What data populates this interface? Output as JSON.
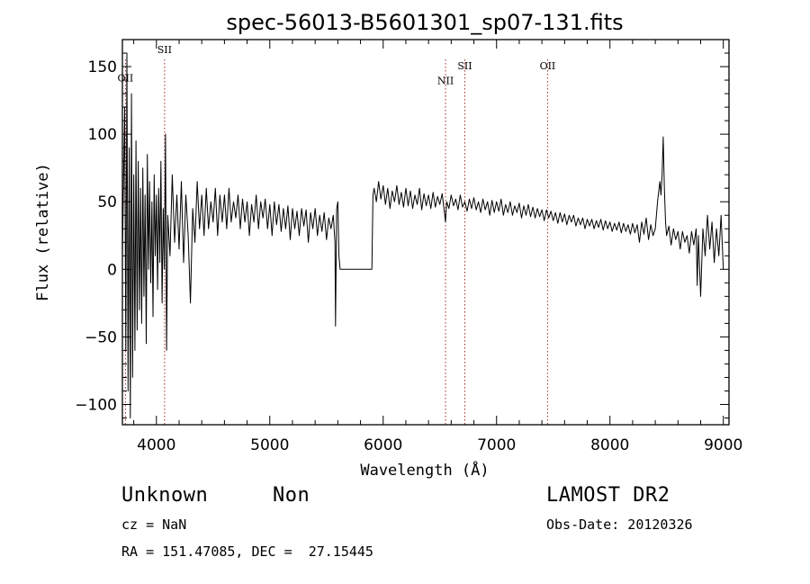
{
  "chart_data": {
    "type": "line",
    "title": "spec-56013-B5601301_sp07-131.fits",
    "xlabel": "Wavelength (Å)",
    "ylabel": "Flux (relative)",
    "xlim": [
      3700,
      9050
    ],
    "ylim": [
      -115,
      170
    ],
    "xticks": [
      4000,
      5000,
      6000,
      7000,
      8000,
      9000
    ],
    "yticks": [
      -100,
      -50,
      0,
      50,
      100,
      150
    ],
    "ytick_labels": [
      "−100",
      "−50",
      "0",
      "50",
      "100",
      "150"
    ],
    "grid": false,
    "lines": [
      {
        "label": "OII",
        "wavelength": 3727,
        "label_y": 139
      },
      {
        "label": "SII",
        "wavelength": 4072,
        "label_y": 160
      },
      {
        "label": "NII",
        "wavelength": 6550,
        "label_y": 137
      },
      {
        "label": "SII",
        "wavelength": 6720,
        "label_y": 148
      },
      {
        "label": "OII",
        "wavelength": 7450,
        "label_y": 148
      }
    ],
    "series": [
      {
        "points": [
          [
            3700,
            10
          ],
          [
            3720,
            120
          ],
          [
            3730,
            -60
          ],
          [
            3740,
            160
          ],
          [
            3750,
            -90
          ],
          [
            3760,
            90
          ],
          [
            3770,
            -110
          ],
          [
            3780,
            130
          ],
          [
            3790,
            -80
          ],
          [
            3800,
            70
          ],
          [
            3810,
            -60
          ],
          [
            3820,
            95
          ],
          [
            3830,
            -45
          ],
          [
            3840,
            80
          ],
          [
            3850,
            -30
          ],
          [
            3860,
            60
          ],
          [
            3870,
            -40
          ],
          [
            3880,
            75
          ],
          [
            3890,
            -20
          ],
          [
            3900,
            55
          ],
          [
            3910,
            -55
          ],
          [
            3920,
            85
          ],
          [
            3930,
            0
          ],
          [
            3940,
            65
          ],
          [
            3950,
            -10
          ],
          [
            3960,
            50
          ],
          [
            3970,
            -35
          ],
          [
            3980,
            70
          ],
          [
            3990,
            10
          ],
          [
            4000,
            55
          ],
          [
            4010,
            -15
          ],
          [
            4020,
            60
          ],
          [
            4030,
            5
          ],
          [
            4040,
            80
          ],
          [
            4050,
            -25
          ],
          [
            4060,
            45
          ],
          [
            4070,
            0
          ],
          [
            4080,
            100
          ],
          [
            4090,
            -60
          ],
          [
            4100,
            40
          ],
          [
            4120,
            10
          ],
          [
            4140,
            70
          ],
          [
            4160,
            20
          ],
          [
            4180,
            55
          ],
          [
            4200,
            15
          ],
          [
            4220,
            65
          ],
          [
            4240,
            5
          ],
          [
            4260,
            55
          ],
          [
            4280,
            25
          ],
          [
            4300,
            -25
          ],
          [
            4320,
            45
          ],
          [
            4340,
            20
          ],
          [
            4360,
            65
          ],
          [
            4380,
            30
          ],
          [
            4400,
            55
          ],
          [
            4420,
            25
          ],
          [
            4440,
            60
          ],
          [
            4460,
            30
          ],
          [
            4480,
            50
          ],
          [
            4500,
            35
          ],
          [
            4520,
            60
          ],
          [
            4540,
            25
          ],
          [
            4560,
            55
          ],
          [
            4580,
            35
          ],
          [
            4600,
            55
          ],
          [
            4620,
            30
          ],
          [
            4640,
            60
          ],
          [
            4660,
            35
          ],
          [
            4680,
            50
          ],
          [
            4700,
            38
          ],
          [
            4720,
            55
          ],
          [
            4740,
            30
          ],
          [
            4760,
            52
          ],
          [
            4780,
            35
          ],
          [
            4800,
            50
          ],
          [
            4820,
            25
          ],
          [
            4840,
            48
          ],
          [
            4860,
            35
          ],
          [
            4880,
            55
          ],
          [
            4900,
            30
          ],
          [
            4920,
            50
          ],
          [
            4940,
            38
          ],
          [
            4960,
            52
          ],
          [
            4980,
            30
          ],
          [
            5000,
            48
          ],
          [
            5020,
            25
          ],
          [
            5040,
            50
          ],
          [
            5060,
            33
          ],
          [
            5080,
            48
          ],
          [
            5100,
            28
          ],
          [
            5120,
            45
          ],
          [
            5140,
            30
          ],
          [
            5160,
            47
          ],
          [
            5180,
            22
          ],
          [
            5200,
            45
          ],
          [
            5220,
            30
          ],
          [
            5240,
            43
          ],
          [
            5260,
            25
          ],
          [
            5280,
            45
          ],
          [
            5300,
            32
          ],
          [
            5320,
            44
          ],
          [
            5340,
            20
          ],
          [
            5360,
            42
          ],
          [
            5380,
            30
          ],
          [
            5400,
            45
          ],
          [
            5420,
            25
          ],
          [
            5440,
            40
          ],
          [
            5460,
            28
          ],
          [
            5480,
            42
          ],
          [
            5500,
            22
          ],
          [
            5520,
            38
          ],
          [
            5540,
            30
          ],
          [
            5560,
            40
          ],
          [
            5575,
            20
          ],
          [
            5580,
            -42
          ],
          [
            5590,
            45
          ],
          [
            5600,
            50
          ],
          [
            5610,
            10
          ],
          [
            5620,
            0
          ],
          [
            5700,
            0
          ],
          [
            5800,
            0
          ],
          [
            5900,
            0
          ],
          [
            5910,
            55
          ],
          [
            5920,
            60
          ],
          [
            5940,
            50
          ],
          [
            5960,
            65
          ],
          [
            5980,
            52
          ],
          [
            6000,
            62
          ],
          [
            6020,
            48
          ],
          [
            6040,
            60
          ],
          [
            6060,
            45
          ],
          [
            6080,
            58
          ],
          [
            6100,
            50
          ],
          [
            6120,
            62
          ],
          [
            6140,
            48
          ],
          [
            6160,
            57
          ],
          [
            6180,
            46
          ],
          [
            6200,
            60
          ],
          [
            6220,
            47
          ],
          [
            6240,
            58
          ],
          [
            6260,
            45
          ],
          [
            6280,
            55
          ],
          [
            6300,
            48
          ],
          [
            6320,
            60
          ],
          [
            6340,
            44
          ],
          [
            6360,
            56
          ],
          [
            6380,
            47
          ],
          [
            6400,
            55
          ],
          [
            6420,
            45
          ],
          [
            6440,
            57
          ],
          [
            6460,
            46
          ],
          [
            6480,
            54
          ],
          [
            6500,
            48
          ],
          [
            6520,
            56
          ],
          [
            6540,
            42
          ],
          [
            6550,
            35
          ],
          [
            6560,
            50
          ],
          [
            6580,
            45
          ],
          [
            6600,
            55
          ],
          [
            6620,
            47
          ],
          [
            6640,
            52
          ],
          [
            6660,
            44
          ],
          [
            6680,
            55
          ],
          [
            6700,
            46
          ],
          [
            6720,
            50
          ],
          [
            6740,
            43
          ],
          [
            6760,
            52
          ],
          [
            6780,
            45
          ],
          [
            6800,
            53
          ],
          [
            6820,
            44
          ],
          [
            6840,
            50
          ],
          [
            6860,
            42
          ],
          [
            6880,
            52
          ],
          [
            6900,
            44
          ],
          [
            6920,
            50
          ],
          [
            6940,
            40
          ],
          [
            6960,
            51
          ],
          [
            6980,
            42
          ],
          [
            7000,
            50
          ],
          [
            7020,
            43
          ],
          [
            7040,
            52
          ],
          [
            7060,
            40
          ],
          [
            7080,
            48
          ],
          [
            7100,
            42
          ],
          [
            7120,
            50
          ],
          [
            7140,
            40
          ],
          [
            7160,
            47
          ],
          [
            7180,
            42
          ],
          [
            7200,
            49
          ],
          [
            7220,
            38
          ],
          [
            7240,
            47
          ],
          [
            7260,
            40
          ],
          [
            7280,
            48
          ],
          [
            7300,
            39
          ],
          [
            7320,
            46
          ],
          [
            7340,
            38
          ],
          [
            7360,
            45
          ],
          [
            7380,
            39
          ],
          [
            7400,
            44
          ],
          [
            7420,
            36
          ],
          [
            7440,
            44
          ],
          [
            7460,
            38
          ],
          [
            7480,
            43
          ],
          [
            7500,
            36
          ],
          [
            7520,
            42
          ],
          [
            7540,
            34
          ],
          [
            7560,
            42
          ],
          [
            7580,
            35
          ],
          [
            7600,
            41
          ],
          [
            7620,
            33
          ],
          [
            7640,
            40
          ],
          [
            7660,
            35
          ],
          [
            7680,
            40
          ],
          [
            7700,
            32
          ],
          [
            7720,
            38
          ],
          [
            7740,
            33
          ],
          [
            7760,
            38
          ],
          [
            7780,
            30
          ],
          [
            7800,
            37
          ],
          [
            7820,
            32
          ],
          [
            7840,
            37
          ],
          [
            7860,
            30
          ],
          [
            7880,
            36
          ],
          [
            7900,
            31
          ],
          [
            7920,
            37
          ],
          [
            7940,
            29
          ],
          [
            7960,
            36
          ],
          [
            7980,
            30
          ],
          [
            8000,
            35
          ],
          [
            8020,
            28
          ],
          [
            8040,
            34
          ],
          [
            8060,
            29
          ],
          [
            8080,
            35
          ],
          [
            8100,
            27
          ],
          [
            8120,
            34
          ],
          [
            8140,
            28
          ],
          [
            8160,
            33
          ],
          [
            8180,
            26
          ],
          [
            8200,
            34
          ],
          [
            8220,
            27
          ],
          [
            8240,
            33
          ],
          [
            8260,
            20
          ],
          [
            8280,
            35
          ],
          [
            8300,
            26
          ],
          [
            8320,
            38
          ],
          [
            8340,
            22
          ],
          [
            8360,
            33
          ],
          [
            8380,
            25
          ],
          [
            8400,
            30
          ],
          [
            8420,
            50
          ],
          [
            8440,
            65
          ],
          [
            8450,
            55
          ],
          [
            8460,
            70
          ],
          [
            8470,
            98
          ],
          [
            8480,
            60
          ],
          [
            8490,
            35
          ],
          [
            8500,
            25
          ],
          [
            8520,
            32
          ],
          [
            8540,
            18
          ],
          [
            8560,
            30
          ],
          [
            8580,
            22
          ],
          [
            8600,
            28
          ],
          [
            8620,
            15
          ],
          [
            8640,
            28
          ],
          [
            8660,
            20
          ],
          [
            8680,
            25
          ],
          [
            8700,
            12
          ],
          [
            8720,
            28
          ],
          [
            8740,
            18
          ],
          [
            8760,
            30
          ],
          [
            8770,
            -12
          ],
          [
            8780,
            25
          ],
          [
            8800,
            -20
          ],
          [
            8820,
            30
          ],
          [
            8840,
            10
          ],
          [
            8860,
            40
          ],
          [
            8880,
            15
          ],
          [
            8900,
            35
          ],
          [
            8920,
            5
          ],
          [
            8940,
            30
          ],
          [
            8960,
            10
          ],
          [
            8980,
            40
          ],
          [
            9000,
            0
          ]
        ]
      }
    ],
    "footer": {
      "object_class": "Unknown",
      "subclass": "Non",
      "survey": "LAMOST DR2",
      "cz": "cz = NaN",
      "obs_date": "Obs-Date: 20120326",
      "radec": "RA = 151.47085, DEC =  27.15445"
    }
  }
}
